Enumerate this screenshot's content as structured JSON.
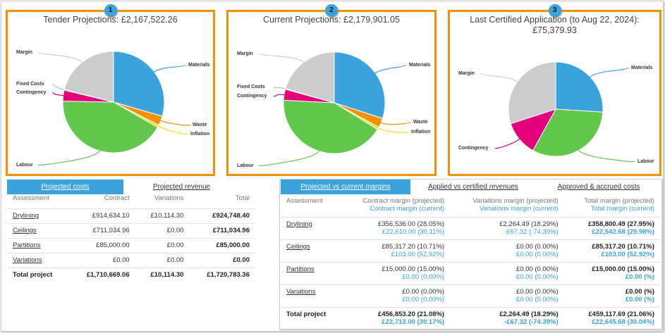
{
  "colors": {
    "Materials": "#3aa3dc",
    "Waste": "#f39200",
    "Inflation": "#f5e11b",
    "Labour": "#62c84c",
    "Contingency": "#e5007e",
    "Fixed Costs": "#a9c6d8",
    "Margin": "#cccccc",
    "panel_border": "#f39200",
    "accent": "#3aa3dc"
  },
  "chart_data": [
    {
      "type": "pie",
      "badge": "1",
      "title": "Tender Projections: £2,167,522.26",
      "slices": [
        {
          "label": "Materials",
          "value": 29.5
        },
        {
          "label": "Waste",
          "value": 3
        },
        {
          "label": "Inflation",
          "value": 0.8
        },
        {
          "label": "Labour",
          "value": 42
        },
        {
          "label": "Contingency",
          "value": 3.5
        },
        {
          "label": "Fixed Costs",
          "value": 0.2
        },
        {
          "label": "Margin",
          "value": 21
        }
      ]
    },
    {
      "type": "pie",
      "badge": "2",
      "title": "Current Projections: £2,179,901.05",
      "slices": [
        {
          "label": "Materials",
          "value": 30
        },
        {
          "label": "Waste",
          "value": 3
        },
        {
          "label": "Inflation",
          "value": 0.8
        },
        {
          "label": "Labour",
          "value": 42
        },
        {
          "label": "Contingency",
          "value": 3.5
        },
        {
          "label": "Fixed Costs",
          "value": 0.2
        },
        {
          "label": "Margin",
          "value": 20.5
        }
      ]
    },
    {
      "type": "pie",
      "badge": "3",
      "title": "Last Certified Application (to Aug 22, 2024):",
      "title2": "£75,379.93",
      "slices": [
        {
          "label": "Materials",
          "value": 26
        },
        {
          "label": "Labour",
          "value": 32
        },
        {
          "label": "Contingency",
          "value": 12
        },
        {
          "label": "Margin",
          "value": 30
        }
      ]
    }
  ],
  "left": {
    "tabs": [
      "Projected costs",
      "Projected revenue"
    ],
    "headers": [
      "Assessment",
      "Contract",
      "Variations",
      "Total"
    ],
    "rows": [
      [
        "Drylining",
        "£914,634.10",
        "£10,114.30",
        "£924,748.40"
      ],
      [
        "Ceilings",
        "£711,034.96",
        "£0.00",
        "£711,034.96"
      ],
      [
        "Partitions",
        "£85,000.00",
        "£0.00",
        "£85,000.00"
      ],
      [
        "Variations",
        "£0.00",
        "£0.00",
        "£0.00"
      ],
      [
        "Total project",
        "£1,710,669.06",
        "£10,114.30",
        "£1,720,783.36"
      ]
    ]
  },
  "right": {
    "tabs": [
      "Projected vs current margins",
      "Applied vs certified revenues",
      "Approved & accrued costs"
    ],
    "headers": [
      [
        "Assessment",
        ""
      ],
      [
        "Contract margin (projected)",
        "Contract margin (current)"
      ],
      [
        "Variations margin (projected)",
        "Variations margin (current)"
      ],
      [
        "Total margin (projected)",
        "Total margin (current)"
      ]
    ],
    "rows": [
      [
        "Drylining",
        [
          "£356,536.00 (28.05%)",
          "£22,610.00 (30.11%)"
        ],
        [
          "£2,264.49 (18.29%)",
          "-£67.32 (-74.39%)"
        ],
        [
          "£358,800.49 (27.95%)",
          "£22,542.68 (29.98%)"
        ]
      ],
      [
        "Ceilings",
        [
          "£85,317.20 (10.71%)",
          "£103.00 (52.92%)"
        ],
        [
          "£0.00 (0.00%)",
          "£0.00 (0.00%)"
        ],
        [
          "£85,317.20 (10.71%)",
          "£103.00 (52.92%)"
        ]
      ],
      [
        "Partitions",
        [
          "£15,000.00 (15.00%)",
          "£0.00 (0.00%)"
        ],
        [
          "£0.00 (0.00%)",
          "£0.00 (0.00%)"
        ],
        [
          "£15,000.00 (15.00%)",
          "£0.00 (%)"
        ]
      ],
      [
        "Variations",
        [
          "£0.00 (0.00%)",
          "£0.00 (0.00%)"
        ],
        [
          "£0.00 (0.00%)",
          "£0.00 (0.00%)"
        ],
        [
          "£0.00 (%)",
          "£0.00 (%)"
        ]
      ],
      [
        "Total project",
        [
          "£456,853.20 (21.08%)",
          "£22,713.00 (30.17%)"
        ],
        [
          "£2,264.49 (18.29%)",
          "-£67.32 (-74.39%)"
        ],
        [
          "£459,117.69 (21.06%)",
          "£22,645.68 (30.04%)"
        ]
      ]
    ]
  }
}
